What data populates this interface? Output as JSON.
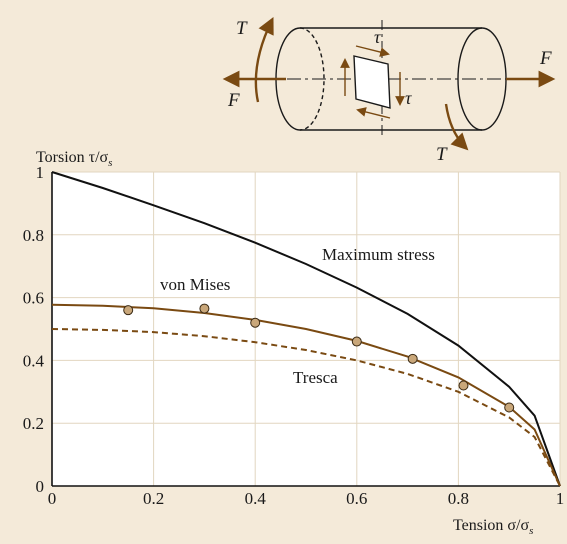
{
  "chart_data": {
    "type": "line",
    "y_axis_label": "Torsion τ/σ",
    "y_axis_label_sub": "s",
    "x_axis_label": "Tension σ/σ",
    "x_axis_label_sub": "s",
    "xlim": [
      0,
      1
    ],
    "ylim": [
      0,
      1
    ],
    "x_ticks": [
      0,
      0.2,
      0.4,
      0.6,
      0.8,
      1
    ],
    "y_ticks": [
      0,
      0.2,
      0.4,
      0.6,
      0.8,
      1
    ],
    "x_tick_labels": [
      "0",
      "0.2",
      "0.4",
      "0.6",
      "0.8",
      "1"
    ],
    "y_tick_labels": [
      "0",
      "0.2",
      "0.4",
      "0.6",
      "0.8",
      "1"
    ],
    "grid": true,
    "series": [
      {
        "name": "Maximum stress",
        "style": "solid",
        "color": "#111111",
        "x": [
          0,
          0.1,
          0.2,
          0.3,
          0.4,
          0.5,
          0.6,
          0.7,
          0.8,
          0.9,
          0.95,
          1.0
        ],
        "y": [
          1.0,
          0.949,
          0.894,
          0.837,
          0.775,
          0.707,
          0.632,
          0.548,
          0.447,
          0.316,
          0.224,
          0.0
        ]
      },
      {
        "name": "von Mises",
        "style": "solid",
        "color": "#7a4a12",
        "x": [
          0,
          0.1,
          0.2,
          0.3,
          0.4,
          0.5,
          0.6,
          0.7,
          0.8,
          0.9,
          0.95,
          1.0
        ],
        "y": [
          0.577,
          0.574,
          0.566,
          0.551,
          0.529,
          0.5,
          0.462,
          0.412,
          0.346,
          0.252,
          0.18,
          0.0
        ]
      },
      {
        "name": "Tresca",
        "style": "dashed",
        "color": "#7a4a12",
        "x": [
          0,
          0.1,
          0.2,
          0.3,
          0.4,
          0.5,
          0.6,
          0.7,
          0.8,
          0.9,
          0.95,
          1.0
        ],
        "y": [
          0.5,
          0.497,
          0.49,
          0.477,
          0.458,
          0.433,
          0.4,
          0.357,
          0.3,
          0.218,
          0.156,
          0.0
        ]
      }
    ],
    "experimental_points": {
      "x": [
        0.15,
        0.3,
        0.4,
        0.6,
        0.71,
        0.81,
        0.9
      ],
      "y": [
        0.56,
        0.565,
        0.52,
        0.46,
        0.405,
        0.32,
        0.25
      ],
      "color": "#c9a77a"
    },
    "annotations": [
      "Maximum stress",
      "von Mises",
      "Tresca"
    ],
    "schematic_labels": {
      "T_left": "T",
      "T_right": "T",
      "F_left": "F",
      "F_right": "F",
      "tau_top": "τ",
      "tau_right": "τ"
    },
    "colors": {
      "background": "#f4ead9",
      "plot_area": "#ffffff",
      "grid": "#e2d6c0",
      "brown": "#7a4a12"
    }
  }
}
